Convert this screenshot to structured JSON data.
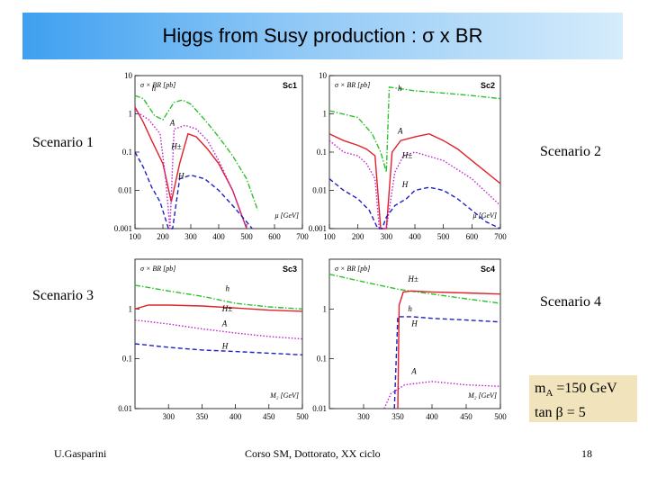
{
  "slide": {
    "title": "Higgs from Susy production : σ x BR",
    "scenario_labels": [
      "Scenario 1",
      "Scenario 2",
      "Scenario 3",
      "Scenario 4"
    ],
    "note_line1_m": "m",
    "note_line1_sub": "A",
    "note_line1_rest": " =150 GeV",
    "note_line2": "tan β = 5",
    "footer_left": "U.Gasparini",
    "footer_center": "Corso SM, Dottorato, XX ciclo",
    "page_number": "18"
  },
  "colors": {
    "red": "#e0202a",
    "green": "#2ec02e",
    "blue": "#2020c0",
    "magenta": "#c020d0",
    "title_grad_left": "#3ea0f0",
    "note_bg": "#f1e4bc"
  },
  "chart_data": [
    {
      "type": "line",
      "panel_tag": "Sc1",
      "ylabel": "σ × BR [pb]",
      "xlabel": "μ [GeV]",
      "xlim": [
        100,
        700
      ],
      "ylim": [
        0.001,
        10
      ],
      "yscale": "log",
      "x_ticks": [
        "100",
        "200",
        "300",
        "400",
        "500",
        "600",
        "700"
      ],
      "y_ticks": [
        "10",
        "1",
        "0.1",
        "0.01",
        "0.001"
      ],
      "curve_labels": [
        "h",
        "A",
        "H±",
        "H"
      ],
      "series": [
        {
          "color": "green",
          "dash": "dashdot",
          "x": [
            100,
            130,
            170,
            200,
            240,
            270,
            300,
            350,
            400,
            450,
            500,
            540
          ],
          "y": [
            3,
            2.5,
            0.9,
            0.7,
            2,
            2.3,
            1.8,
            0.7,
            0.25,
            0.08,
            0.02,
            0.003
          ]
        },
        {
          "color": "red",
          "dash": "solid",
          "x": [
            100,
            130,
            160,
            200,
            230,
            260,
            290,
            320,
            360,
            400,
            450,
            500
          ],
          "y": [
            1.5,
            0.6,
            0.2,
            0.05,
            0.005,
            0.05,
            0.3,
            0.25,
            0.12,
            0.05,
            0.01,
            0.001
          ]
        },
        {
          "color": "magenta",
          "dash": "dotted",
          "x": [
            100,
            150,
            190,
            210,
            225,
            240,
            280,
            320,
            360,
            400,
            450,
            500
          ],
          "y": [
            1.2,
            0.7,
            0.3,
            0.02,
            0.001,
            0.4,
            0.5,
            0.4,
            0.2,
            0.06,
            0.01,
            0.001
          ]
        },
        {
          "color": "blue",
          "dash": "dashed",
          "x": [
            100,
            130,
            160,
            190,
            220,
            235,
            260,
            300,
            350,
            400,
            450,
            500,
            520
          ],
          "y": [
            0.1,
            0.04,
            0.012,
            0.005,
            0.001,
            0.001,
            0.02,
            0.025,
            0.02,
            0.01,
            0.004,
            0.0015,
            0.001
          ]
        }
      ]
    },
    {
      "type": "line",
      "panel_tag": "Sc2",
      "ylabel": "σ × BR [pb]",
      "xlabel": "μ [GeV]",
      "xlim": [
        100,
        700
      ],
      "ylim": [
        0.001,
        10
      ],
      "yscale": "log",
      "x_ticks": [
        "100",
        "200",
        "300",
        "400",
        "500",
        "600",
        "700"
      ],
      "y_ticks": [
        "10",
        "1",
        "0.1",
        "0.01",
        "0.001"
      ],
      "curve_labels": [
        "h",
        "A",
        "H±",
        "H"
      ],
      "series": [
        {
          "color": "green",
          "dash": "dashdot",
          "x": [
            100,
            200,
            250,
            280,
            300,
            310,
            400,
            500,
            600,
            700
          ],
          "y": [
            1.2,
            0.8,
            0.3,
            0.1,
            0.03,
            5,
            4,
            3.5,
            3,
            2.5
          ]
        },
        {
          "color": "red",
          "dash": "solid",
          "x": [
            100,
            150,
            200,
            230,
            260,
            280,
            300,
            320,
            350,
            400,
            450,
            500,
            550,
            600,
            650,
            700
          ],
          "y": [
            0.3,
            0.2,
            0.15,
            0.12,
            0.08,
            0.001,
            0.001,
            0.1,
            0.2,
            0.25,
            0.3,
            0.2,
            0.12,
            0.06,
            0.03,
            0.015
          ]
        },
        {
          "color": "magenta",
          "dash": "dotted",
          "x": [
            100,
            150,
            200,
            230,
            260,
            275,
            300,
            330,
            360,
            400,
            500,
            600,
            700
          ],
          "y": [
            0.2,
            0.1,
            0.08,
            0.05,
            0.02,
            0.001,
            0.001,
            0.03,
            0.08,
            0.1,
            0.06,
            0.02,
            0.004
          ]
        },
        {
          "color": "blue",
          "dash": "dashed",
          "x": [
            100,
            150,
            200,
            240,
            270,
            285,
            300,
            330,
            370,
            400,
            450,
            500,
            550,
            600,
            650,
            700
          ],
          "y": [
            0.02,
            0.01,
            0.006,
            0.003,
            0.001,
            0.001,
            0.002,
            0.004,
            0.006,
            0.01,
            0.012,
            0.01,
            0.006,
            0.003,
            0.0015,
            0.001
          ]
        }
      ]
    },
    {
      "type": "line",
      "panel_tag": "Sc3",
      "ylabel": "σ × BR [pb]",
      "xlabel": "M₂ [GeV]",
      "xlim": [
        250,
        500
      ],
      "ylim": [
        0.01,
        10
      ],
      "yscale": "log",
      "x_ticks": [
        "300",
        "350",
        "400",
        "450",
        "500"
      ],
      "y_ticks": [
        "1",
        "0.1",
        "0.01"
      ],
      "curve_labels": [
        "h",
        "H±",
        "A",
        "H"
      ],
      "series": [
        {
          "color": "green",
          "dash": "dashdot",
          "x": [
            250,
            300,
            350,
            400,
            450,
            500
          ],
          "y": [
            3,
            2.3,
            1.8,
            1.3,
            1.1,
            1
          ]
        },
        {
          "color": "red",
          "dash": "solid",
          "x": [
            250,
            270,
            300,
            350,
            400,
            450,
            500
          ],
          "y": [
            1,
            1.2,
            1.2,
            1.15,
            1.05,
            0.95,
            0.9
          ]
        },
        {
          "color": "magenta",
          "dash": "dotted",
          "x": [
            250,
            300,
            350,
            400,
            450,
            500
          ],
          "y": [
            0.6,
            0.5,
            0.4,
            0.33,
            0.28,
            0.25
          ]
        },
        {
          "color": "blue",
          "dash": "dashed",
          "x": [
            250,
            300,
            350,
            400,
            450,
            500
          ],
          "y": [
            0.2,
            0.17,
            0.15,
            0.14,
            0.13,
            0.12
          ]
        }
      ]
    },
    {
      "type": "line",
      "panel_tag": "Sc4",
      "ylabel": "σ × BR [pb]",
      "xlabel": "M₂ [GeV]",
      "xlim": [
        250,
        500
      ],
      "ylim": [
        0.01,
        10
      ],
      "yscale": "log",
      "x_ticks": [
        "300",
        "350",
        "400",
        "450",
        "500"
      ],
      "y_ticks": [
        "1",
        "0.1",
        "0.01"
      ],
      "curve_labels": [
        "H±",
        "h",
        "H",
        "A"
      ],
      "series": [
        {
          "color": "green",
          "dash": "dashdot",
          "x": [
            250,
            300,
            350,
            400,
            450,
            500
          ],
          "y": [
            5,
            3.5,
            2.5,
            2,
            1.6,
            1.3
          ]
        },
        {
          "color": "red",
          "dash": "solid",
          "x": [
            350,
            352,
            358,
            370,
            400,
            450,
            500
          ],
          "y": [
            0.01,
            1.2,
            2.2,
            2.3,
            2.2,
            2.1,
            2
          ]
        },
        {
          "color": "blue",
          "dash": "dashed",
          "x": [
            345,
            350,
            370,
            400,
            450,
            500
          ],
          "y": [
            0.01,
            0.7,
            0.7,
            0.65,
            0.6,
            0.55
          ]
        },
        {
          "color": "magenta",
          "dash": "dotted",
          "x": [
            330,
            340,
            360,
            400,
            450,
            500
          ],
          "y": [
            0.01,
            0.02,
            0.03,
            0.035,
            0.03,
            0.028
          ]
        }
      ]
    }
  ]
}
